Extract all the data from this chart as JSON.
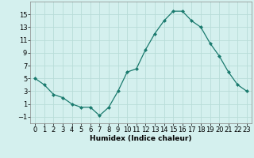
{
  "x": [
    0,
    1,
    2,
    3,
    4,
    5,
    6,
    7,
    8,
    9,
    10,
    11,
    12,
    13,
    14,
    15,
    16,
    17,
    18,
    19,
    20,
    21,
    22,
    23
  ],
  "y": [
    5,
    4,
    2.5,
    2,
    1,
    0.5,
    0.5,
    -0.8,
    0.5,
    3,
    6,
    6.5,
    9.5,
    12,
    14,
    15.5,
    15.5,
    14,
    13,
    10.5,
    8.5,
    6,
    4,
    3
  ],
  "xlabel": "Humidex (Indice chaleur)",
  "xlim": [
    -0.5,
    23.5
  ],
  "ylim": [
    -2,
    17
  ],
  "yticks": [
    -1,
    1,
    3,
    5,
    7,
    9,
    11,
    13,
    15
  ],
  "xticks": [
    0,
    1,
    2,
    3,
    4,
    5,
    6,
    7,
    8,
    9,
    10,
    11,
    12,
    13,
    14,
    15,
    16,
    17,
    18,
    19,
    20,
    21,
    22,
    23
  ],
  "line_color": "#1a7a6e",
  "marker": "D",
  "marker_size": 2.0,
  "bg_color": "#d4f0ee",
  "grid_color": "#b8dcd8",
  "label_fontsize": 6.5,
  "tick_fontsize": 6
}
